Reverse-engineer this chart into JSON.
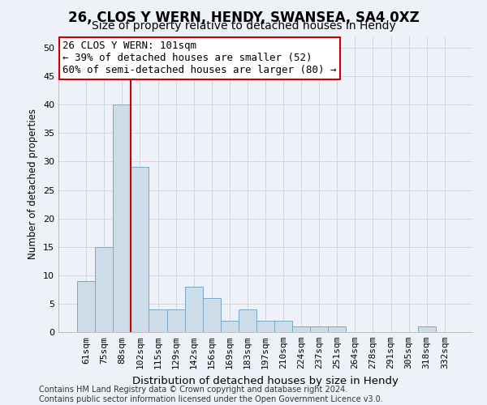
{
  "title": "26, CLOS Y WERN, HENDY, SWANSEA, SA4 0XZ",
  "subtitle": "Size of property relative to detached houses in Hendy",
  "xlabel": "Distribution of detached houses by size in Hendy",
  "ylabel": "Number of detached properties",
  "categories": [
    "61sqm",
    "75sqm",
    "88sqm",
    "102sqm",
    "115sqm",
    "129sqm",
    "142sqm",
    "156sqm",
    "169sqm",
    "183sqm",
    "197sqm",
    "210sqm",
    "224sqm",
    "237sqm",
    "251sqm",
    "264sqm",
    "278sqm",
    "291sqm",
    "305sqm",
    "318sqm",
    "332sqm"
  ],
  "values": [
    9,
    15,
    40,
    29,
    4,
    4,
    8,
    6,
    2,
    4,
    2,
    2,
    1,
    1,
    1,
    0,
    0,
    0,
    0,
    1,
    0
  ],
  "bar_color": "#ccdce8",
  "bar_edge_color": "#7aa8c8",
  "highlight_line_color": "#cc0000",
  "annotation_line1": "26 CLOS Y WERN: 101sqm",
  "annotation_line2": "← 39% of detached houses are smaller (52)",
  "annotation_line3": "60% of semi-detached houses are larger (80) →",
  "annotation_box_color": "#cc0000",
  "ylim": [
    0,
    52
  ],
  "yticks": [
    0,
    5,
    10,
    15,
    20,
    25,
    30,
    35,
    40,
    45,
    50
  ],
  "footer_text": "Contains HM Land Registry data © Crown copyright and database right 2024.\nContains public sector information licensed under the Open Government Licence v3.0.",
  "background_color": "#eef2f8",
  "plot_background_color": "#eef2f8",
  "title_fontsize": 12,
  "subtitle_fontsize": 10,
  "xlabel_fontsize": 9.5,
  "ylabel_fontsize": 8.5,
  "tick_fontsize": 8,
  "annotation_fontsize": 9,
  "footer_fontsize": 7
}
